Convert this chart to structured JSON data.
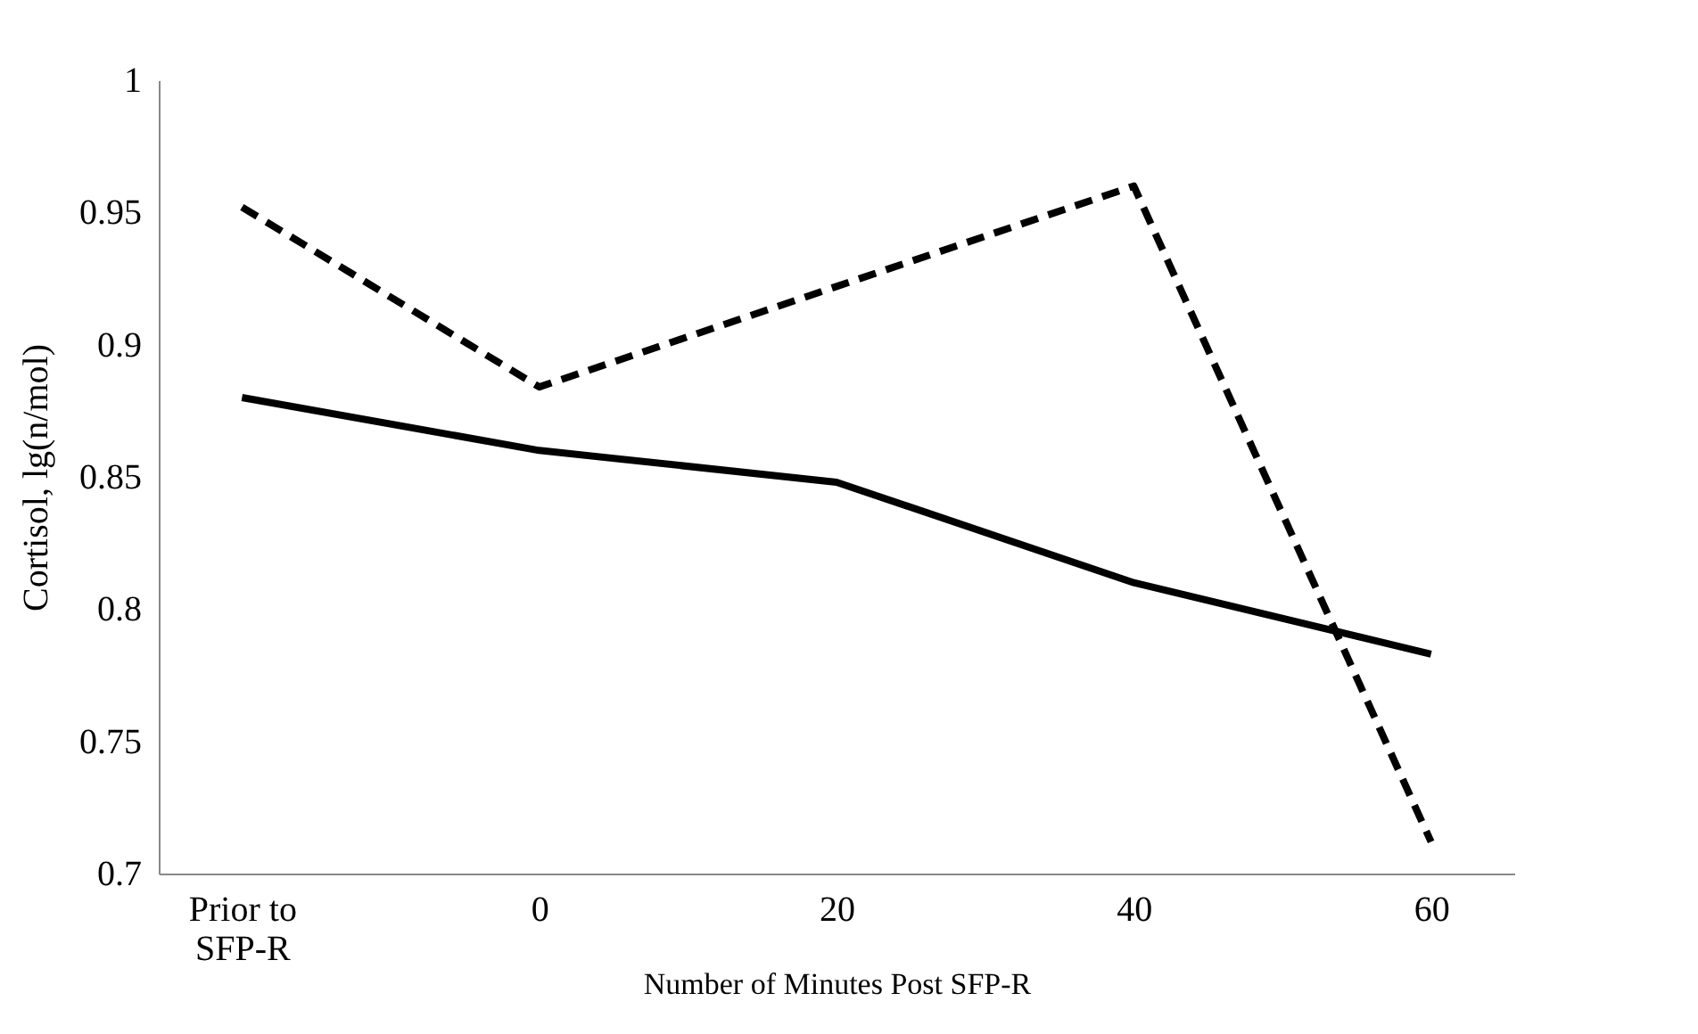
{
  "chart_data": {
    "type": "line",
    "xlabel": "Number of Minutes Post SFP-R",
    "ylabel": "Cortisol, lg(n/mol)",
    "categories": [
      "Prior to\nSFP-R",
      "0",
      "20",
      "40",
      "60"
    ],
    "ylim": [
      0.7,
      1
    ],
    "yticks": [
      0.7,
      0.75,
      0.8,
      0.85,
      0.9,
      0.95,
      1
    ],
    "grid": false,
    "legend": false,
    "marker": "none",
    "series": [
      {
        "color": "#000000",
        "line_style": "solid",
        "values": [
          0.88,
          0.86,
          0.848,
          0.81,
          0.783
        ]
      },
      {
        "color": "#000000",
        "line_style": "dashed",
        "values": [
          0.952,
          0.884,
          0.922,
          0.96,
          0.712
        ]
      }
    ]
  }
}
